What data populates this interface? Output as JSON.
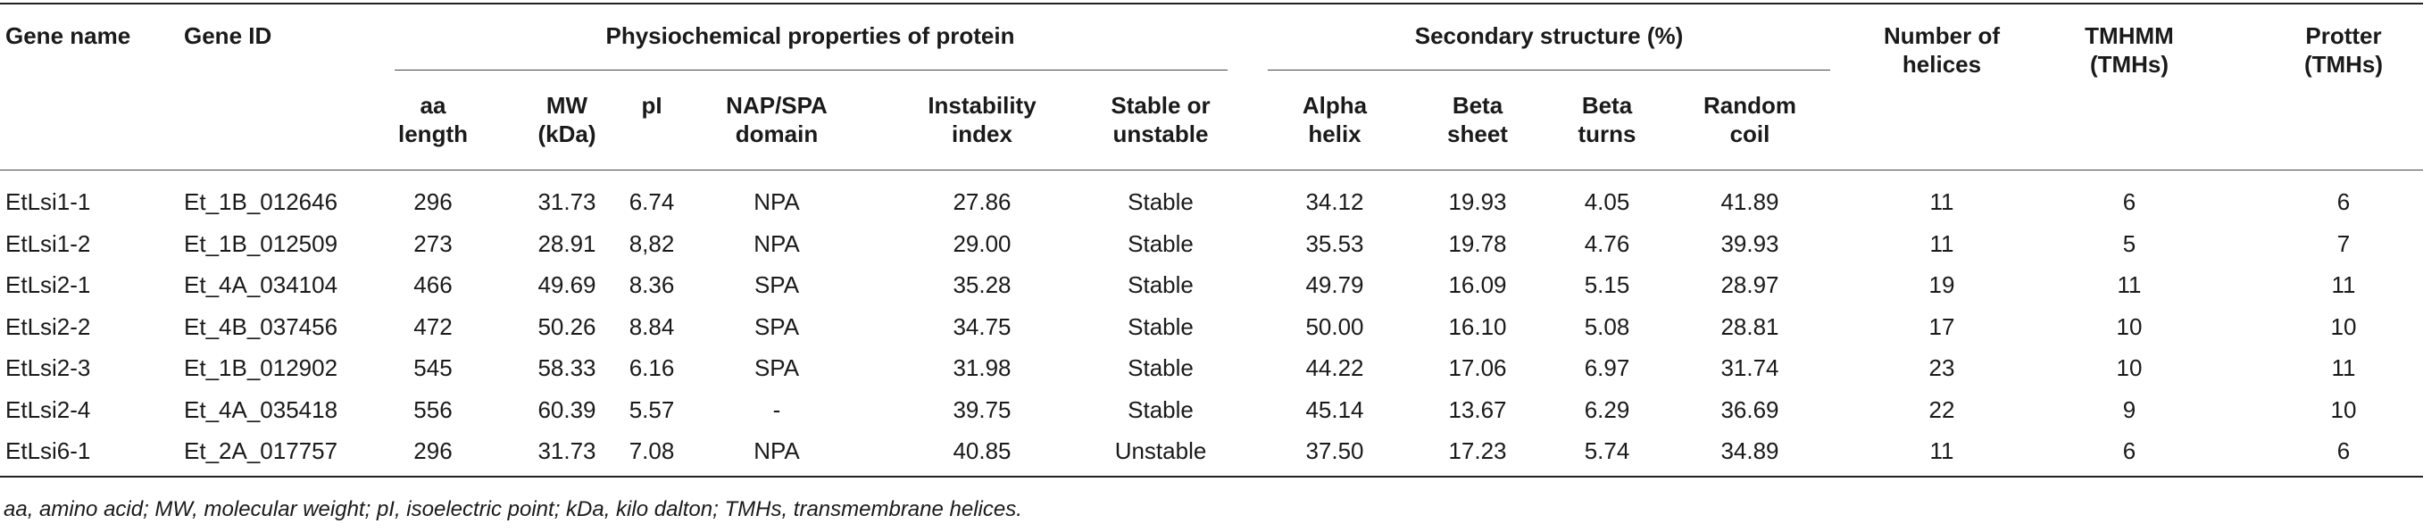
{
  "headers": {
    "gene_name": "Gene name",
    "gene_id": "Gene ID",
    "physio_group": "Physiochemical properties of protein",
    "secondary_group": "Secondary structure (%)",
    "aa_length": "aa length",
    "mw": "MW (kDa)",
    "pi": "pI",
    "nap_spa": "NAP/SPA domain",
    "instability": "Instability index",
    "stable": "Stable or unstable",
    "alpha": "Alpha helix",
    "beta_sheet": "Beta sheet",
    "beta_turns": "Beta turns",
    "random_coil": "Random coil",
    "helices": "Number of helices",
    "tmhmm": "TMHMM (TMHs)",
    "protter": "Protter (TMHs)"
  },
  "rows": [
    [
      "EtLsi1-1",
      "Et_1B_012646",
      "296",
      "31.73",
      "6.74",
      "NPA",
      "27.86",
      "Stable",
      "34.12",
      "19.93",
      "4.05",
      "41.89",
      "11",
      "6",
      "6"
    ],
    [
      "EtLsi1-2",
      "Et_1B_012509",
      "273",
      "28.91",
      "8,82",
      "NPA",
      "29.00",
      "Stable",
      "35.53",
      "19.78",
      "4.76",
      "39.93",
      "11",
      "5",
      "7"
    ],
    [
      "EtLsi2-1",
      "Et_4A_034104",
      "466",
      "49.69",
      "8.36",
      "SPA",
      "35.28",
      "Stable",
      "49.79",
      "16.09",
      "5.15",
      "28.97",
      "19",
      "11",
      "11"
    ],
    [
      "EtLsi2-2",
      "Et_4B_037456",
      "472",
      "50.26",
      "8.84",
      "SPA",
      "34.75",
      "Stable",
      "50.00",
      "16.10",
      "5.08",
      "28.81",
      "17",
      "10",
      "10"
    ],
    [
      "EtLsi2-3",
      "Et_1B_012902",
      "545",
      "58.33",
      "6.16",
      "SPA",
      "31.98",
      "Stable",
      "44.22",
      "17.06",
      "6.97",
      "31.74",
      "23",
      "10",
      "11"
    ],
    [
      "EtLsi2-4",
      "Et_4A_035418",
      "556",
      "60.39",
      "5.57",
      "-",
      "39.75",
      "Stable",
      "45.14",
      "13.67",
      "6.29",
      "36.69",
      "22",
      "9",
      "10"
    ],
    [
      "EtLsi6-1",
      "Et_2A_017757",
      "296",
      "31.73",
      "7.08",
      "NPA",
      "40.85",
      "Unstable",
      "37.50",
      "17.23",
      "5.74",
      "34.89",
      "11",
      "6",
      "6"
    ]
  ],
  "footnote": "aa, amino acid; MW, molecular weight; pI, isoelectric point; kDa, kilo dalton; TMHs, transmembrane helices."
}
